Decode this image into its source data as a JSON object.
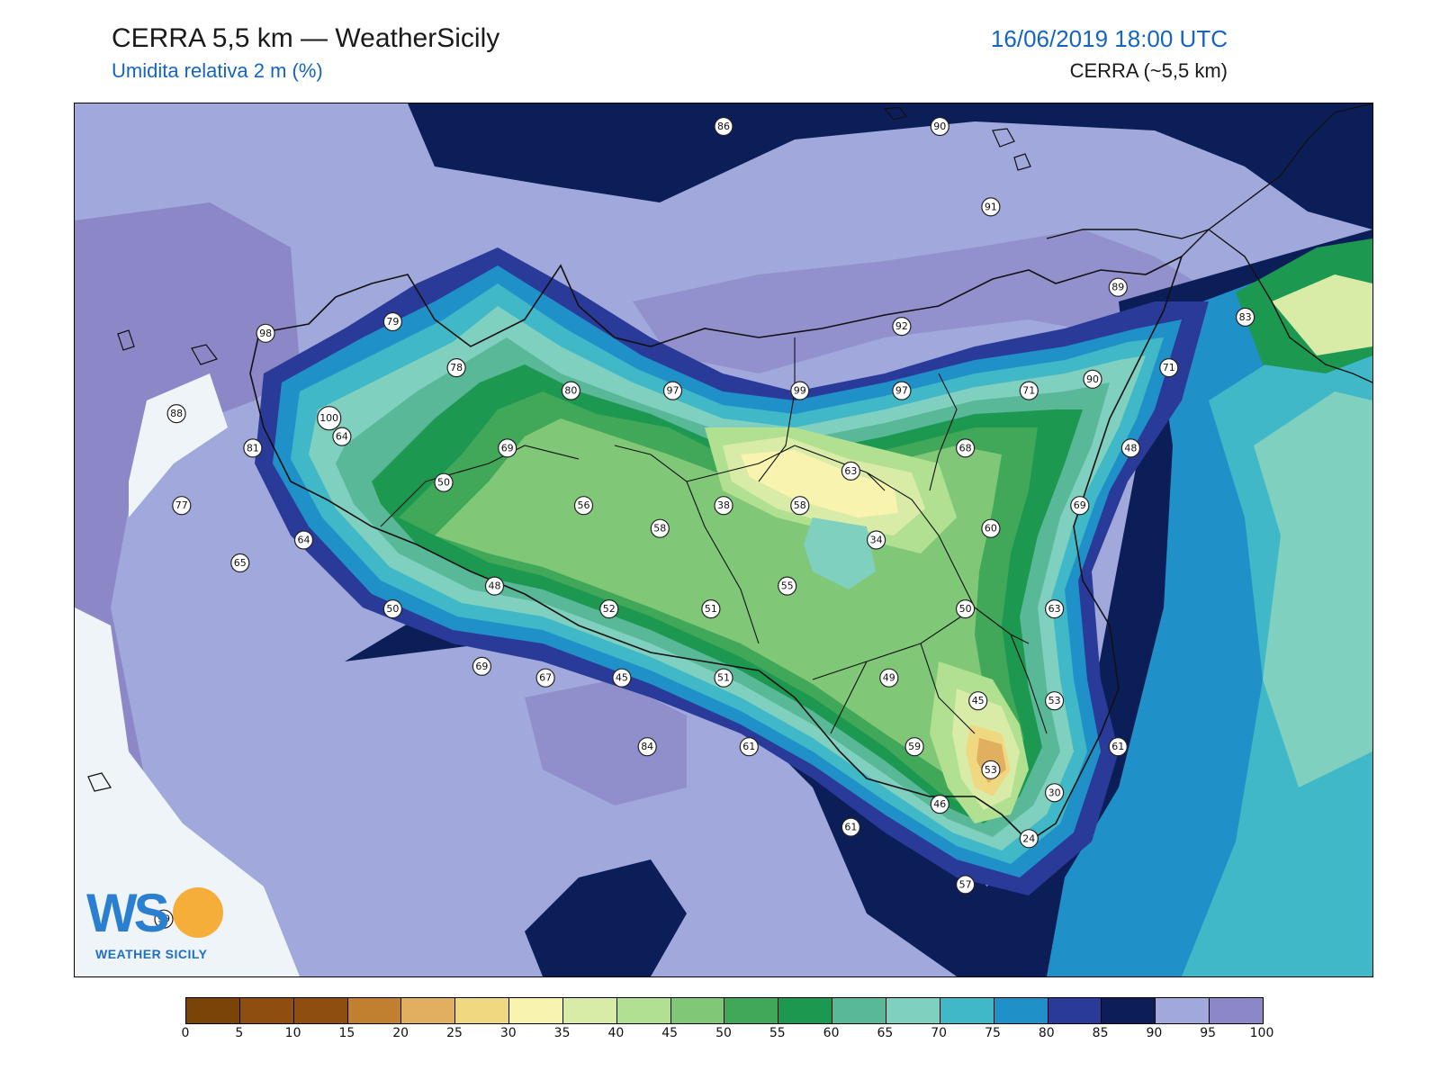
{
  "header": {
    "title": "CERRA 5,5 km — WeatherSicily",
    "subtitle": "Umidita relativa 2 m (%)",
    "datetime": "16/06/2019 18:00 UTC",
    "model": "CERRA (~5,5 km)"
  },
  "map": {
    "variable": "relative humidity 2 m",
    "region": "Sicily",
    "stations": [
      {
        "value": "86",
        "lon": 14.15,
        "lat": 39.25
      },
      {
        "value": "90",
        "lon": 15.0,
        "lat": 39.25
      },
      {
        "value": "91",
        "lon": 15.2,
        "lat": 38.9
      },
      {
        "value": "89",
        "lon": 15.7,
        "lat": 38.55
      },
      {
        "value": "83",
        "lon": 16.2,
        "lat": 38.42
      },
      {
        "value": "98",
        "lon": 12.35,
        "lat": 38.35
      },
      {
        "value": "79",
        "lon": 12.85,
        "lat": 38.4
      },
      {
        "value": "78",
        "lon": 13.1,
        "lat": 38.2
      },
      {
        "value": "92",
        "lon": 14.85,
        "lat": 38.38
      },
      {
        "value": "71",
        "lon": 15.9,
        "lat": 38.2
      },
      {
        "value": "90",
        "lon": 15.6,
        "lat": 38.15
      },
      {
        "value": "88",
        "lon": 12.0,
        "lat": 38.0
      },
      {
        "value": "100",
        "lon": 12.6,
        "lat": 37.98
      },
      {
        "value": "64",
        "lon": 12.65,
        "lat": 37.9
      },
      {
        "value": "80",
        "lon": 13.55,
        "lat": 38.1
      },
      {
        "value": "97",
        "lon": 13.95,
        "lat": 38.1
      },
      {
        "value": "99",
        "lon": 14.45,
        "lat": 38.1
      },
      {
        "value": "97",
        "lon": 14.85,
        "lat": 38.1
      },
      {
        "value": "71",
        "lon": 15.35,
        "lat": 38.1
      },
      {
        "value": "81",
        "lon": 12.3,
        "lat": 37.85
      },
      {
        "value": "69",
        "lon": 13.3,
        "lat": 37.85
      },
      {
        "value": "68",
        "lon": 15.1,
        "lat": 37.85
      },
      {
        "value": "48",
        "lon": 15.75,
        "lat": 37.85
      },
      {
        "value": "63",
        "lon": 14.65,
        "lat": 37.75
      },
      {
        "value": "50",
        "lon": 13.05,
        "lat": 37.7
      },
      {
        "value": "77",
        "lon": 12.02,
        "lat": 37.6
      },
      {
        "value": "56",
        "lon": 13.6,
        "lat": 37.6
      },
      {
        "value": "38",
        "lon": 14.15,
        "lat": 37.6
      },
      {
        "value": "58",
        "lon": 14.45,
        "lat": 37.6
      },
      {
        "value": "69",
        "lon": 15.55,
        "lat": 37.6
      },
      {
        "value": "58",
        "lon": 13.9,
        "lat": 37.5
      },
      {
        "value": "60",
        "lon": 15.2,
        "lat": 37.5
      },
      {
        "value": "64",
        "lon": 12.5,
        "lat": 37.45
      },
      {
        "value": "34",
        "lon": 14.75,
        "lat": 37.45
      },
      {
        "value": "65",
        "lon": 12.25,
        "lat": 37.35
      },
      {
        "value": "48",
        "lon": 13.25,
        "lat": 37.25
      },
      {
        "value": "55",
        "lon": 14.4,
        "lat": 37.25
      },
      {
        "value": "50",
        "lon": 12.85,
        "lat": 37.15
      },
      {
        "value": "52",
        "lon": 13.7,
        "lat": 37.15
      },
      {
        "value": "51",
        "lon": 14.1,
        "lat": 37.15
      },
      {
        "value": "50",
        "lon": 15.1,
        "lat": 37.15
      },
      {
        "value": "63",
        "lon": 15.45,
        "lat": 37.15
      },
      {
        "value": "69",
        "lon": 13.2,
        "lat": 36.9
      },
      {
        "value": "67",
        "lon": 13.45,
        "lat": 36.85
      },
      {
        "value": "45",
        "lon": 13.75,
        "lat": 36.85
      },
      {
        "value": "51",
        "lon": 14.15,
        "lat": 36.85
      },
      {
        "value": "49",
        "lon": 14.8,
        "lat": 36.85
      },
      {
        "value": "45",
        "lon": 15.15,
        "lat": 36.75
      },
      {
        "value": "53",
        "lon": 15.45,
        "lat": 36.75
      },
      {
        "value": "84",
        "lon": 13.85,
        "lat": 36.55
      },
      {
        "value": "61",
        "lon": 14.25,
        "lat": 36.55
      },
      {
        "value": "59",
        "lon": 14.9,
        "lat": 36.55
      },
      {
        "value": "61",
        "lon": 15.7,
        "lat": 36.55
      },
      {
        "value": "53",
        "lon": 15.2,
        "lat": 36.45
      },
      {
        "value": "30",
        "lon": 15.45,
        "lat": 36.35
      },
      {
        "value": "46",
        "lon": 15.0,
        "lat": 36.3
      },
      {
        "value": "61",
        "lon": 14.65,
        "lat": 36.2
      },
      {
        "value": "24",
        "lon": 15.35,
        "lat": 36.15
      },
      {
        "value": "57",
        "lon": 15.1,
        "lat": 35.95
      },
      {
        "value": "99",
        "lon": 11.95,
        "lat": 35.8
      }
    ]
  },
  "colorbar": {
    "ticks": [
      "0",
      "5",
      "10",
      "15",
      "20",
      "25",
      "30",
      "35",
      "40",
      "45",
      "50",
      "55",
      "60",
      "65",
      "70",
      "75",
      "80",
      "85",
      "90",
      "95",
      "100"
    ],
    "colors": [
      "#7a4307",
      "#8e4e0f",
      "#8e4e0f",
      "#c08030",
      "#e0b060",
      "#f0d880",
      "#f8f4b0",
      "#d8eca8",
      "#b0e090",
      "#80c878",
      "#40a858",
      "#1c9850",
      "#58b898",
      "#80d0c0",
      "#40b8c8",
      "#2090c8",
      "#2a3a98",
      "#0c1e58",
      "#a0a8dc",
      "#8c88c8"
    ]
  },
  "logo": {
    "mark": "WS",
    "brand": "WEATHER SICILY"
  }
}
